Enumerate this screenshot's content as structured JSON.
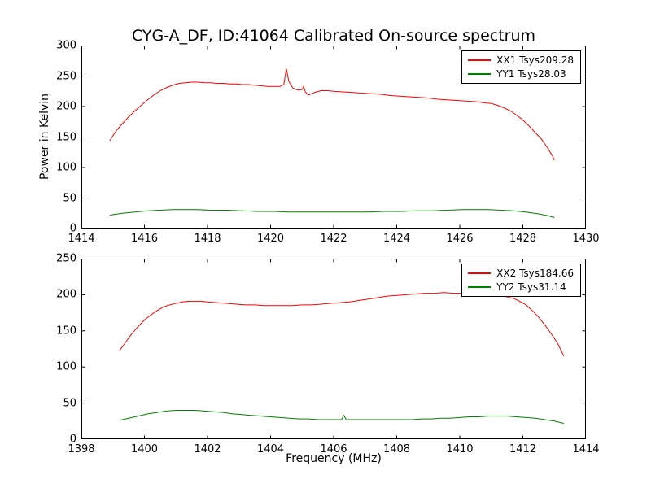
{
  "title": "CYG-A_DF, ID:41064 Calibrated On-source spectrum",
  "chart_data": [
    {
      "type": "line",
      "xlabel": "",
      "ylabel": "Power in Kelvin",
      "xlim": [
        1414,
        1430
      ],
      "ylim": [
        0,
        300
      ],
      "xticks": [
        1414,
        1416,
        1418,
        1420,
        1422,
        1424,
        1426,
        1428,
        1430
      ],
      "yticks": [
        0,
        50,
        100,
        150,
        200,
        250,
        300
      ],
      "grid": false,
      "legend_position": "upper right",
      "series": [
        {
          "name": "XX1 Tsys209.28",
          "color": "#ff0000",
          "points": [
            [
              1414.9,
              144
            ],
            [
              1415.1,
              160
            ],
            [
              1415.3,
              172
            ],
            [
              1415.5,
              183
            ],
            [
              1415.7,
              193
            ],
            [
              1415.9,
              202
            ],
            [
              1416.1,
              211
            ],
            [
              1416.3,
              219
            ],
            [
              1416.5,
              226
            ],
            [
              1416.7,
              231
            ],
            [
              1416.9,
              235
            ],
            [
              1417.1,
              238
            ],
            [
              1417.3,
              239
            ],
            [
              1417.5,
              240
            ],
            [
              1417.7,
              240
            ],
            [
              1417.9,
              239
            ],
            [
              1418.1,
              239
            ],
            [
              1418.3,
              238
            ],
            [
              1418.5,
              238
            ],
            [
              1418.7,
              237
            ],
            [
              1418.9,
              237
            ],
            [
              1419.1,
              236
            ],
            [
              1419.3,
              236
            ],
            [
              1419.5,
              235
            ],
            [
              1419.7,
              234
            ],
            [
              1419.9,
              233
            ],
            [
              1420.1,
              233
            ],
            [
              1420.3,
              233
            ],
            [
              1420.42,
              236
            ],
            [
              1420.5,
              262
            ],
            [
              1420.58,
              241
            ],
            [
              1420.7,
              231
            ],
            [
              1420.8,
              228
            ],
            [
              1420.9,
              227
            ],
            [
              1421.0,
              228
            ],
            [
              1421.05,
              233
            ],
            [
              1421.1,
              224
            ],
            [
              1421.2,
              219
            ],
            [
              1421.3,
              221
            ],
            [
              1421.45,
              224
            ],
            [
              1421.6,
              226
            ],
            [
              1421.8,
              226
            ],
            [
              1422.0,
              225
            ],
            [
              1422.3,
              224
            ],
            [
              1422.6,
              223
            ],
            [
              1422.9,
              222
            ],
            [
              1423.2,
              221
            ],
            [
              1423.5,
              220
            ],
            [
              1423.8,
              218
            ],
            [
              1424.1,
              217
            ],
            [
              1424.4,
              216
            ],
            [
              1424.7,
              215
            ],
            [
              1425.0,
              214
            ],
            [
              1425.3,
              212
            ],
            [
              1425.6,
              211
            ],
            [
              1425.9,
              210
            ],
            [
              1426.2,
              209
            ],
            [
              1426.5,
              208
            ],
            [
              1426.8,
              206
            ],
            [
              1427.0,
              205
            ],
            [
              1427.2,
              202
            ],
            [
              1427.4,
              198
            ],
            [
              1427.6,
              193
            ],
            [
              1427.8,
              186
            ],
            [
              1428.0,
              178
            ],
            [
              1428.2,
              168
            ],
            [
              1428.4,
              157
            ],
            [
              1428.6,
              146
            ],
            [
              1428.8,
              131
            ],
            [
              1428.95,
              118
            ],
            [
              1429.0,
              112
            ]
          ]
        },
        {
          "name": "YY1 Tsys28.03",
          "color": "#008000",
          "points": [
            [
              1414.9,
              22
            ],
            [
              1415.3,
              25
            ],
            [
              1415.7,
              27
            ],
            [
              1416.1,
              29
            ],
            [
              1416.5,
              30
            ],
            [
              1416.9,
              31
            ],
            [
              1417.3,
              31
            ],
            [
              1417.7,
              31
            ],
            [
              1418.1,
              30
            ],
            [
              1418.6,
              30
            ],
            [
              1419.1,
              29
            ],
            [
              1419.6,
              28
            ],
            [
              1420.1,
              28
            ],
            [
              1420.6,
              27
            ],
            [
              1421.1,
              27
            ],
            [
              1421.6,
              27
            ],
            [
              1422.1,
              27
            ],
            [
              1422.6,
              27
            ],
            [
              1423.1,
              27
            ],
            [
              1423.6,
              28
            ],
            [
              1424.1,
              28
            ],
            [
              1424.6,
              29
            ],
            [
              1425.1,
              29
            ],
            [
              1425.6,
              30
            ],
            [
              1426.1,
              31
            ],
            [
              1426.5,
              31
            ],
            [
              1426.9,
              31
            ],
            [
              1427.3,
              30
            ],
            [
              1427.7,
              29
            ],
            [
              1428.1,
              27
            ],
            [
              1428.5,
              24
            ],
            [
              1428.8,
              21
            ],
            [
              1429.0,
              18
            ]
          ]
        }
      ]
    },
    {
      "type": "line",
      "xlabel": "Frequency (MHz)",
      "ylabel": "",
      "xlim": [
        1398,
        1414
      ],
      "ylim": [
        0,
        250
      ],
      "xticks": [
        1398,
        1400,
        1402,
        1404,
        1406,
        1408,
        1410,
        1412,
        1414
      ],
      "yticks": [
        0,
        50,
        100,
        150,
        200,
        250
      ],
      "grid": false,
      "legend_position": "upper right",
      "series": [
        {
          "name": "XX2 Tsys184.66",
          "color": "#ff0000",
          "points": [
            [
              1399.2,
              122
            ],
            [
              1399.4,
              134
            ],
            [
              1399.6,
              146
            ],
            [
              1399.8,
              156
            ],
            [
              1400.0,
              165
            ],
            [
              1400.2,
              172
            ],
            [
              1400.4,
              178
            ],
            [
              1400.6,
              183
            ],
            [
              1400.8,
              186
            ],
            [
              1401.0,
              188
            ],
            [
              1401.2,
              190
            ],
            [
              1401.4,
              191
            ],
            [
              1401.6,
              191
            ],
            [
              1401.8,
              191
            ],
            [
              1402.0,
              190
            ],
            [
              1402.3,
              189
            ],
            [
              1402.6,
              188
            ],
            [
              1402.9,
              187
            ],
            [
              1403.2,
              186
            ],
            [
              1403.5,
              186
            ],
            [
              1403.8,
              185
            ],
            [
              1404.1,
              185
            ],
            [
              1404.4,
              185
            ],
            [
              1404.7,
              185
            ],
            [
              1405.0,
              186
            ],
            [
              1405.3,
              186
            ],
            [
              1405.6,
              187
            ],
            [
              1405.9,
              188
            ],
            [
              1406.2,
              189
            ],
            [
              1406.5,
              190
            ],
            [
              1406.8,
              192
            ],
            [
              1407.1,
              194
            ],
            [
              1407.4,
              196
            ],
            [
              1407.7,
              198
            ],
            [
              1408.0,
              199
            ],
            [
              1408.3,
              200
            ],
            [
              1408.6,
              201
            ],
            [
              1408.9,
              202
            ],
            [
              1409.2,
              202
            ],
            [
              1409.5,
              203
            ],
            [
              1409.8,
              202
            ],
            [
              1410.1,
              202
            ],
            [
              1410.4,
              202
            ],
            [
              1410.7,
              201
            ],
            [
              1411.0,
              200
            ],
            [
              1411.3,
              199
            ],
            [
              1411.5,
              197
            ],
            [
              1411.7,
              195
            ],
            [
              1411.9,
              191
            ],
            [
              1412.1,
              186
            ],
            [
              1412.3,
              178
            ],
            [
              1412.5,
              169
            ],
            [
              1412.7,
              158
            ],
            [
              1412.9,
              146
            ],
            [
              1413.1,
              133
            ],
            [
              1413.3,
              115
            ]
          ]
        },
        {
          "name": "YY2 Tsys31.14",
          "color": "#008000",
          "points": [
            [
              1399.2,
              26
            ],
            [
              1399.5,
              29
            ],
            [
              1399.8,
              32
            ],
            [
              1400.1,
              35
            ],
            [
              1400.4,
              37
            ],
            [
              1400.7,
              39
            ],
            [
              1401.0,
              40
            ],
            [
              1401.3,
              40
            ],
            [
              1401.6,
              40
            ],
            [
              1401.9,
              39
            ],
            [
              1402.2,
              38
            ],
            [
              1402.5,
              37
            ],
            [
              1402.8,
              35
            ],
            [
              1403.1,
              34
            ],
            [
              1403.4,
              33
            ],
            [
              1403.7,
              32
            ],
            [
              1404.0,
              31
            ],
            [
              1404.3,
              30
            ],
            [
              1404.6,
              29
            ],
            [
              1404.9,
              28
            ],
            [
              1405.2,
              28
            ],
            [
              1405.5,
              27
            ],
            [
              1405.8,
              27
            ],
            [
              1406.1,
              27
            ],
            [
              1406.25,
              27
            ],
            [
              1406.32,
              33
            ],
            [
              1406.4,
              27
            ],
            [
              1406.7,
              27
            ],
            [
              1407.0,
              27
            ],
            [
              1407.3,
              27
            ],
            [
              1407.6,
              27
            ],
            [
              1407.9,
              27
            ],
            [
              1408.2,
              27
            ],
            [
              1408.5,
              27
            ],
            [
              1408.8,
              28
            ],
            [
              1409.1,
              28
            ],
            [
              1409.4,
              29
            ],
            [
              1409.7,
              29
            ],
            [
              1410.0,
              30
            ],
            [
              1410.3,
              31
            ],
            [
              1410.6,
              31
            ],
            [
              1410.9,
              32
            ],
            [
              1411.2,
              32
            ],
            [
              1411.5,
              32
            ],
            [
              1411.8,
              31
            ],
            [
              1412.1,
              30
            ],
            [
              1412.4,
              29
            ],
            [
              1412.7,
              27
            ],
            [
              1413.0,
              25
            ],
            [
              1413.2,
              23
            ],
            [
              1413.3,
              22
            ]
          ]
        }
      ]
    }
  ]
}
